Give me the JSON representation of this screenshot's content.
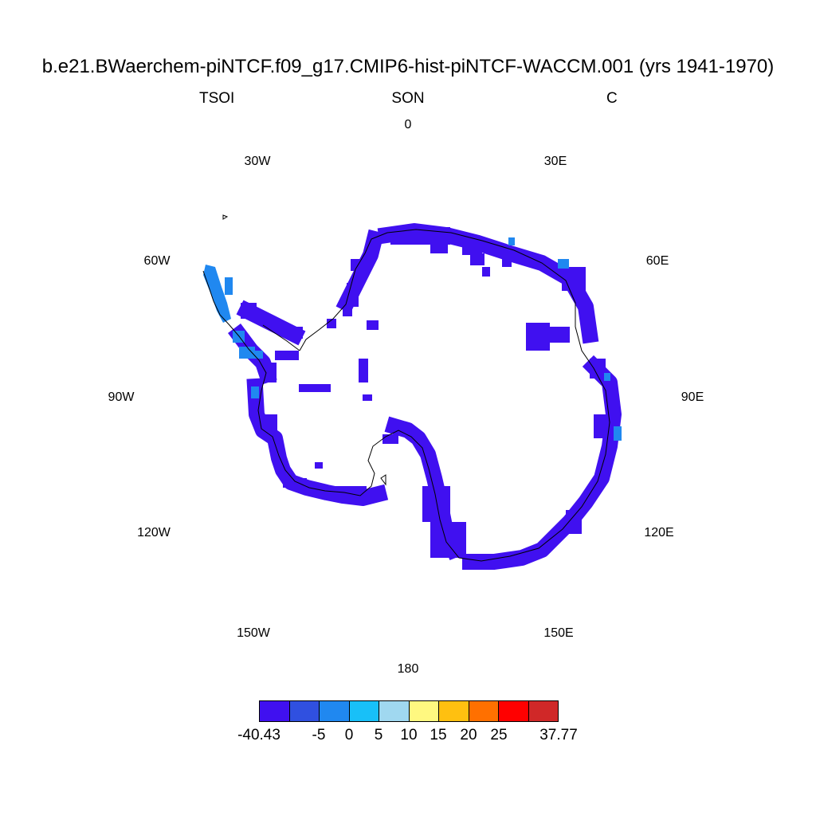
{
  "title": "b.e21.BWaerchem-piNTCF.f09_g17.CMIP6-hist-piNTCF-WACCM.001 (yrs 1941-1970)",
  "subtitle_left": "TSOI",
  "subtitle_center": "SON",
  "subtitle_right": "C",
  "longitude_labels": [
    "0",
    "30E",
    "60E",
    "90E",
    "120E",
    "150E",
    "180",
    "150W",
    "120W",
    "90W",
    "60W",
    "30W"
  ],
  "colorbar": {
    "colors": [
      "#4010f0",
      "#3050e0",
      "#2088f0",
      "#18c0f8",
      "#a0d8f0",
      "#fff880",
      "#ffc010",
      "#ff7000",
      "#ff0000",
      "#d02828"
    ],
    "labels": [
      "-40.43",
      "-5",
      "0",
      "5",
      "10",
      "15",
      "20",
      "25",
      "37.77"
    ]
  },
  "map_colors": {
    "dominant": "#4010f0",
    "peninsula": "#2088f0",
    "coastline": "#000000"
  }
}
